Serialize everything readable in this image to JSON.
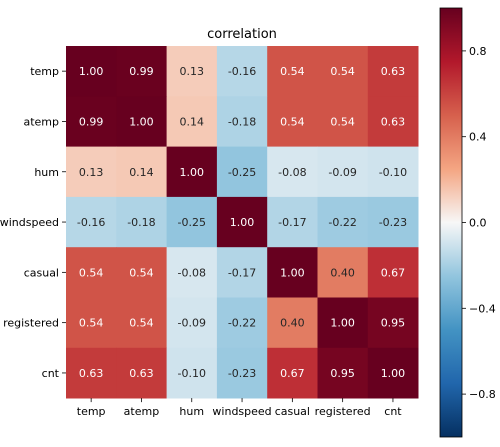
{
  "chart_data": {
    "type": "heatmap",
    "title": "correlation",
    "xlabel": "",
    "ylabel": "",
    "variables": [
      "temp",
      "atemp",
      "hum",
      "windspeed",
      "casual",
      "registered",
      "cnt"
    ],
    "x_tick_labels": [
      "temp",
      "atemp",
      "hum",
      "windspeed",
      "casual",
      "registered",
      "cnt"
    ],
    "y_tick_labels": [
      "temp",
      "atemp",
      "hum",
      "windspeed",
      "casual",
      "registered",
      "cnt"
    ],
    "values": [
      [
        1.0,
        0.99,
        0.13,
        -0.16,
        0.54,
        0.54,
        0.63
      ],
      [
        0.99,
        1.0,
        0.14,
        -0.18,
        0.54,
        0.54,
        0.63
      ],
      [
        0.13,
        0.14,
        1.0,
        -0.25,
        -0.08,
        -0.09,
        -0.1
      ],
      [
        -0.16,
        -0.18,
        -0.25,
        1.0,
        -0.17,
        -0.22,
        -0.23
      ],
      [
        0.54,
        0.54,
        -0.08,
        -0.17,
        1.0,
        0.4,
        0.67
      ],
      [
        0.54,
        0.54,
        -0.09,
        -0.22,
        0.4,
        1.0,
        0.95
      ],
      [
        0.63,
        0.63,
        -0.1,
        -0.23,
        0.67,
        0.95,
        1.0
      ]
    ],
    "value_labels": [
      [
        "1.00",
        "0.99",
        "0.13",
        "-0.16",
        "0.54",
        "0.54",
        "0.63"
      ],
      [
        "0.99",
        "1.00",
        "0.14",
        "-0.18",
        "0.54",
        "0.54",
        "0.63"
      ],
      [
        "0.13",
        "0.14",
        "1.00",
        "-0.25",
        "-0.08",
        "-0.09",
        "-0.10"
      ],
      [
        "-0.16",
        "-0.18",
        "-0.25",
        "1.00",
        "-0.17",
        "-0.22",
        "-0.23"
      ],
      [
        "0.54",
        "0.54",
        "-0.08",
        "-0.17",
        "1.00",
        "0.40",
        "0.67"
      ],
      [
        "0.54",
        "0.54",
        "-0.09",
        "-0.22",
        "0.40",
        "1.00",
        "0.95"
      ],
      [
        "0.63",
        "0.63",
        "-0.10",
        "-0.23",
        "0.67",
        "0.95",
        "1.00"
      ]
    ],
    "colormap": "RdBu_r",
    "vmin": -1.0,
    "vmax": 1.0,
    "colorbar": {
      "ticks": [
        0.8,
        0.4,
        0.0,
        -0.4,
        -0.8
      ],
      "tick_labels": [
        "0.8",
        "0.4",
        "0.0",
        "−0.4",
        "−0.8"
      ]
    },
    "grid": false,
    "legend": "colorbar-right"
  }
}
